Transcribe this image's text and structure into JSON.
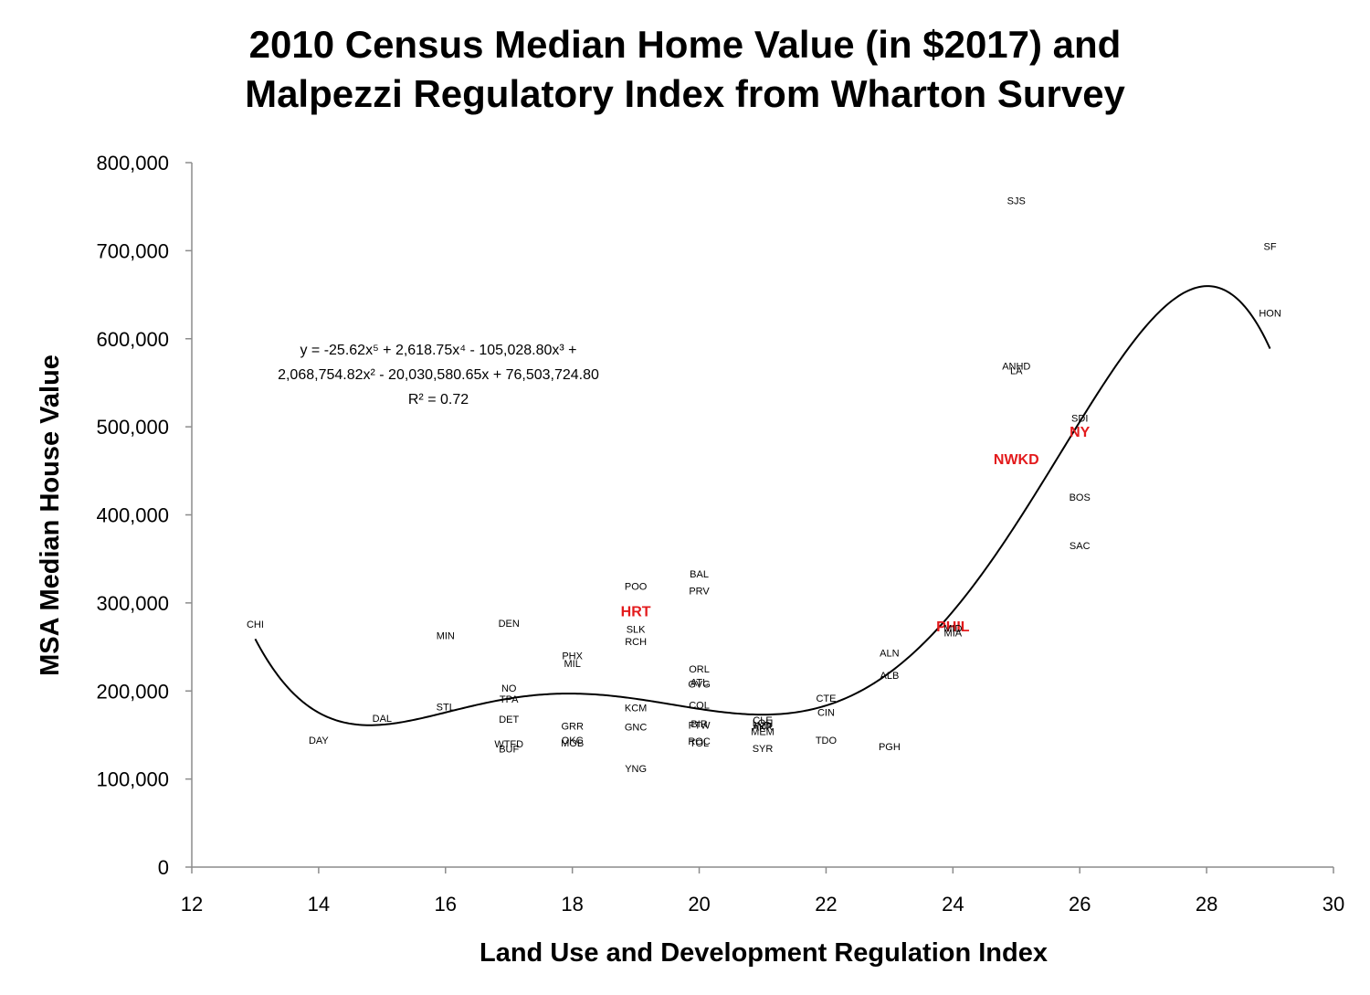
{
  "chart_data": {
    "type": "scatter",
    "title": [
      "2010 Census Median Home Value (in $2017) and",
      "Malpezzi Regulatory Index from Wharton Survey"
    ],
    "xlabel": "Land Use and Development Regulation Index",
    "ylabel": "MSA Median House Value",
    "xlim": [
      12,
      30
    ],
    "ylim": [
      0,
      800000
    ],
    "x_ticks": [
      "12",
      "14",
      "16",
      "18",
      "20",
      "22",
      "24",
      "26",
      "28",
      "30"
    ],
    "y_ticks": [
      "0",
      "100,000",
      "200,000",
      "300,000",
      "400,000",
      "500,000",
      "600,000",
      "700,000",
      "800,000"
    ],
    "grid": false,
    "highlight_color": "#e31a1c",
    "trendline": {
      "type": "polynomial-5",
      "coefficients": [
        -25.62,
        2618.75,
        -105028.8,
        2068754.82,
        -20030580.65,
        76503724.8
      ],
      "x_range": [
        13,
        29
      ],
      "equation_lines": [
        "y = -25.62x⁵ + 2,618.75x⁴ - 105,028.80x³ +",
        "2,068,754.82x² - 20,030,580.65x + 76,503,724.80",
        "R² = 0.72"
      ]
    },
    "points": [
      {
        "label": "CHI",
        "x": 13,
        "y": 275000
      },
      {
        "label": "DAY",
        "x": 14,
        "y": 143000
      },
      {
        "label": "DAL",
        "x": 15,
        "y": 168000
      },
      {
        "label": "MIN",
        "x": 16,
        "y": 262000
      },
      {
        "label": "STL",
        "x": 16,
        "y": 181000
      },
      {
        "label": "DEN",
        "x": 17,
        "y": 276000
      },
      {
        "label": "NO",
        "x": 17,
        "y": 202000
      },
      {
        "label": "TPA",
        "x": 17,
        "y": 190000
      },
      {
        "label": "DET",
        "x": 17,
        "y": 167000
      },
      {
        "label": "WTFD",
        "x": 17,
        "y": 139000
      },
      {
        "label": "BUF",
        "x": 17,
        "y": 133000
      },
      {
        "label": "PHX",
        "x": 18,
        "y": 239000
      },
      {
        "label": "MIL",
        "x": 18,
        "y": 230000
      },
      {
        "label": "GRR",
        "x": 18,
        "y": 159000
      },
      {
        "label": "OKC",
        "x": 18,
        "y": 143000
      },
      {
        "label": "MOB",
        "x": 18,
        "y": 140000
      },
      {
        "label": "POO",
        "x": 19,
        "y": 318000
      },
      {
        "label": "HRT",
        "x": 19,
        "y": 289000,
        "highlight": true
      },
      {
        "label": "SLK",
        "x": 19,
        "y": 269000
      },
      {
        "label": "RCH",
        "x": 19,
        "y": 255000
      },
      {
        "label": "KCM",
        "x": 19,
        "y": 180000
      },
      {
        "label": "GNC",
        "x": 19,
        "y": 158000
      },
      {
        "label": "YNG",
        "x": 19,
        "y": 111000
      },
      {
        "label": "BAL",
        "x": 20,
        "y": 332000
      },
      {
        "label": "PRV",
        "x": 20,
        "y": 313000
      },
      {
        "label": "ORL",
        "x": 20,
        "y": 224000
      },
      {
        "label": "ATL",
        "x": 20,
        "y": 209000
      },
      {
        "label": "GVG",
        "x": 20,
        "y": 207000
      },
      {
        "label": "COL",
        "x": 20,
        "y": 183000
      },
      {
        "label": "BIR",
        "x": 20,
        "y": 162000
      },
      {
        "label": "FTW",
        "x": 20,
        "y": 160000
      },
      {
        "label": "ROC",
        "x": 20,
        "y": 142000
      },
      {
        "label": "TOL",
        "x": 20,
        "y": 140000
      },
      {
        "label": "CLE",
        "x": 21,
        "y": 166000
      },
      {
        "label": "LOU",
        "x": 21,
        "y": 163000
      },
      {
        "label": "IND",
        "x": 21,
        "y": 160000
      },
      {
        "label": "AKR",
        "x": 21,
        "y": 158000
      },
      {
        "label": "MEM",
        "x": 21,
        "y": 153000
      },
      {
        "label": "SYR",
        "x": 21,
        "y": 134000
      },
      {
        "label": "CTE",
        "x": 22,
        "y": 191000
      },
      {
        "label": "CIN",
        "x": 22,
        "y": 175000
      },
      {
        "label": "TDO",
        "x": 22,
        "y": 143000
      },
      {
        "label": "ALN",
        "x": 23,
        "y": 242000
      },
      {
        "label": "ALB",
        "x": 23,
        "y": 217000
      },
      {
        "label": "PGH",
        "x": 23,
        "y": 136000
      },
      {
        "label": "PHIL",
        "x": 24,
        "y": 272000,
        "highlight": true
      },
      {
        "label": "MID",
        "x": 24,
        "y": 270000
      },
      {
        "label": "MIA",
        "x": 24,
        "y": 265000
      },
      {
        "label": "SJS",
        "x": 25,
        "y": 756000
      },
      {
        "label": "ANHD",
        "x": 25,
        "y": 568000
      },
      {
        "label": "LA",
        "x": 25,
        "y": 563000
      },
      {
        "label": "NWKD",
        "x": 25,
        "y": 462000,
        "highlight": true
      },
      {
        "label": "SDI",
        "x": 26,
        "y": 509000
      },
      {
        "label": "NY",
        "x": 26,
        "y": 493000,
        "highlight": true
      },
      {
        "label": "BOS",
        "x": 26,
        "y": 419000
      },
      {
        "label": "SAC",
        "x": 26,
        "y": 364000
      },
      {
        "label": "SF",
        "x": 29,
        "y": 704000
      },
      {
        "label": "HON",
        "x": 29,
        "y": 628000
      }
    ]
  }
}
